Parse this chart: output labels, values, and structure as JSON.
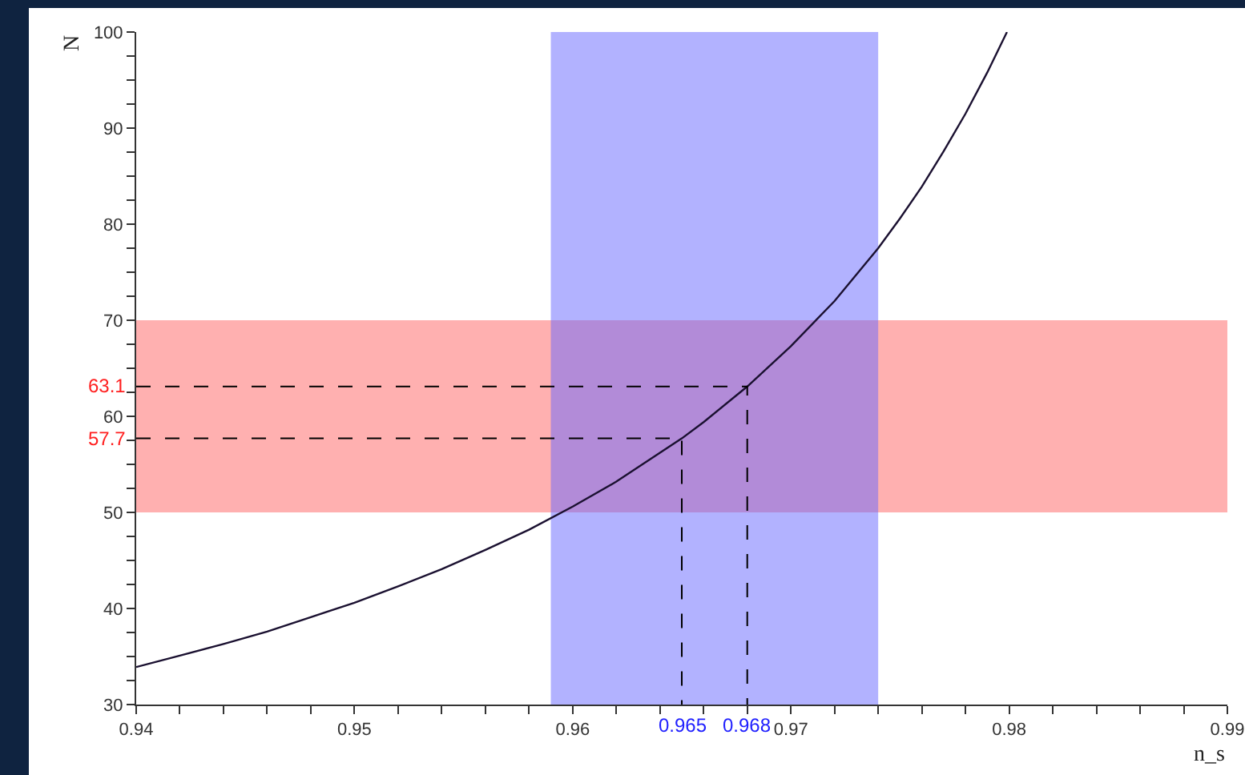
{
  "chart_data": {
    "type": "line",
    "xlabel": "n_s",
    "ylabel": "N",
    "xlim": [
      0.94,
      0.99
    ],
    "ylim": [
      30,
      100
    ],
    "xticks": [
      0.94,
      {
        "value": 0.942,
        "label": null
      },
      {
        "value": 0.944,
        "label": null
      },
      {
        "value": 0.946,
        "label": null
      },
      {
        "value": 0.948,
        "label": null
      },
      0.95,
      {
        "value": 0.952,
        "label": null
      },
      {
        "value": 0.954,
        "label": null
      },
      {
        "value": 0.956,
        "label": null
      },
      {
        "value": 0.958,
        "label": null
      },
      0.96,
      {
        "value": 0.962,
        "label": null
      },
      {
        "value": 0.964,
        "label": null
      },
      {
        "value": 0.966,
        "label": null
      },
      {
        "value": 0.968,
        "label": null
      },
      0.97,
      {
        "value": 0.972,
        "label": null
      },
      {
        "value": 0.974,
        "label": null
      },
      {
        "value": 0.976,
        "label": null
      },
      {
        "value": 0.978,
        "label": null
      },
      0.98,
      {
        "value": 0.982,
        "label": null
      },
      {
        "value": 0.984,
        "label": null
      },
      {
        "value": 0.986,
        "label": null
      },
      {
        "value": 0.988,
        "label": null
      },
      0.99
    ],
    "yticks": [
      30,
      {
        "value": 32.5,
        "label": null
      },
      {
        "value": 35,
        "label": null
      },
      {
        "value": 37.5,
        "label": null
      },
      40,
      {
        "value": 42.5,
        "label": null
      },
      {
        "value": 45,
        "label": null
      },
      {
        "value": 47.5,
        "label": null
      },
      50,
      {
        "value": 52.5,
        "label": null
      },
      {
        "value": 55,
        "label": null
      },
      {
        "value": 57.5,
        "label": null
      },
      60,
      {
        "value": 62.5,
        "label": null
      },
      {
        "value": 65,
        "label": null
      },
      {
        "value": 67.5,
        "label": null
      },
      70,
      {
        "value": 72.5,
        "label": null
      },
      {
        "value": 75,
        "label": null
      },
      {
        "value": 77.5,
        "label": null
      },
      80,
      {
        "value": 82.5,
        "label": null
      },
      {
        "value": 85,
        "label": null
      },
      {
        "value": 87.5,
        "label": null
      },
      90,
      {
        "value": 92.5,
        "label": null
      },
      {
        "value": 95,
        "label": null
      },
      {
        "value": 97.5,
        "label": null
      },
      100
    ],
    "grid": false,
    "series": [
      {
        "color": "#1a1030",
        "line_style": "solid",
        "x": [
          0.94,
          0.942,
          0.944,
          0.946,
          0.948,
          0.95,
          0.952,
          0.954,
          0.956,
          0.958,
          0.96,
          0.962,
          0.964,
          0.965,
          0.966,
          0.968,
          0.97,
          0.972,
          0.974,
          0.975,
          0.976,
          0.977,
          0.978,
          0.979,
          0.9799
        ],
        "values": [
          33.9,
          35.1,
          36.3,
          37.6,
          39.1,
          40.6,
          42.3,
          44.1,
          46.1,
          48.2,
          50.6,
          53.2,
          56.2,
          57.7,
          59.4,
          63.1,
          67.3,
          72.0,
          77.5,
          80.6,
          83.9,
          87.6,
          91.5,
          95.8,
          100
        ]
      },
      {
        "color": "#000000",
        "line_style": "dashed",
        "x": [
          0.94,
          0.965,
          0.965
        ],
        "values": [
          57.7,
          57.7,
          30
        ]
      },
      {
        "color": "#000000",
        "line_style": "dashed",
        "x": [
          0.94,
          0.968,
          0.968
        ],
        "values": [
          63.1,
          63.1,
          30
        ]
      }
    ],
    "bands": [
      {
        "axis": "y",
        "from": 50,
        "to": 70,
        "color": "#ff6161"
      },
      {
        "axis": "x",
        "from": 0.959,
        "to": 0.974,
        "color": "#6666ff"
      }
    ],
    "annotations": [
      {
        "text": "63.1",
        "x": 0.94,
        "y": 63.1
      },
      {
        "text": "57.7",
        "x": 0.94,
        "y": 57.7
      },
      {
        "text": "0.965",
        "x": 0.965,
        "y": 30
      },
      {
        "text": "0.968",
        "x": 0.968,
        "y": 30
      }
    ]
  }
}
